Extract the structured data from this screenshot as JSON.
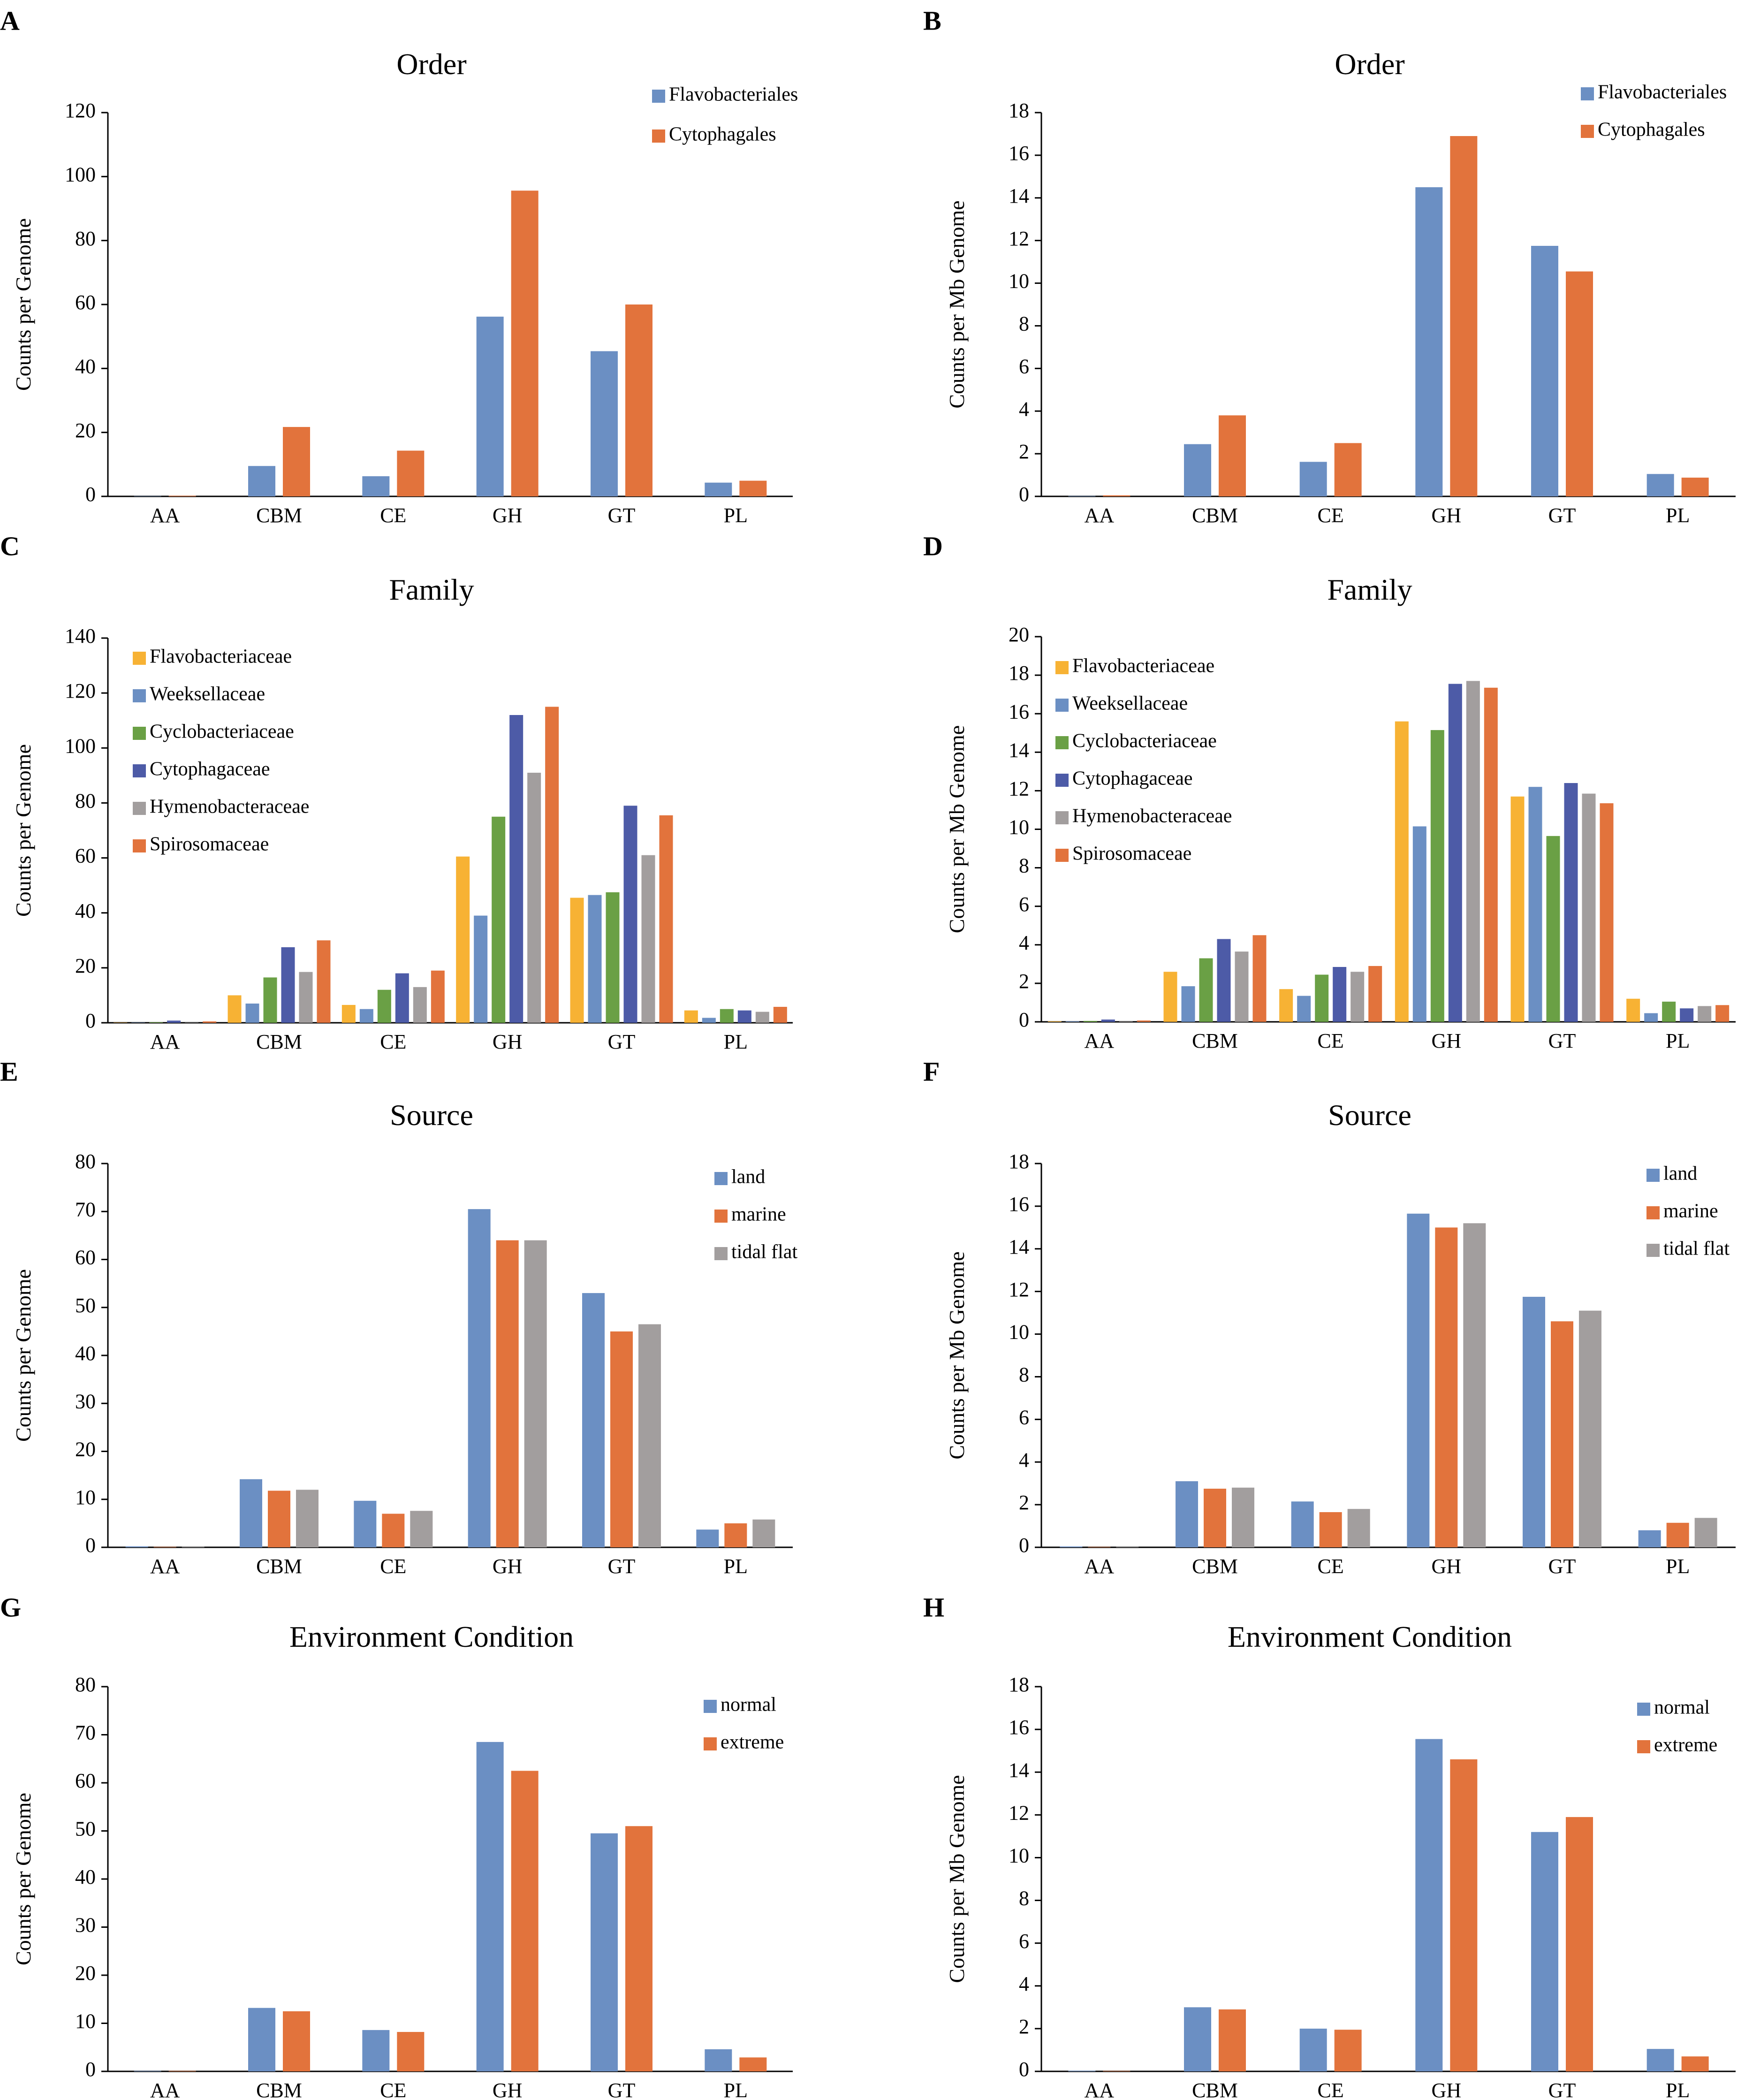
{
  "colors": {
    "blue": "#6b8fc3",
    "orange": "#e2733c",
    "yellow": "#f7b234",
    "green": "#6aa045",
    "darkblue": "#4d5ba7",
    "gray": "#a29e9e"
  },
  "chart_data": [
    {
      "panel": "A",
      "type": "bar",
      "title": "Order",
      "ylabel": "Counts per Genome",
      "categories": [
        "AA",
        "CBM",
        "CE",
        "GH",
        "GT",
        "PL"
      ],
      "ylim": [
        0,
        120
      ],
      "yticks": [
        "0",
        "20",
        "40",
        "60",
        "80",
        "100",
        "120"
      ],
      "ytick_values": [
        0,
        20,
        40,
        60,
        80,
        100,
        120
      ],
      "legend_position": "top-right",
      "series": [
        {
          "name": "Flavobacteriales",
          "color": "#6b8fc3",
          "values": [
            0.1,
            9.5,
            6.3,
            56.2,
            45.4,
            4.3
          ]
        },
        {
          "name": "Cytophagales",
          "color": "#e2733c",
          "values": [
            0.2,
            21.7,
            14.3,
            95.6,
            60.0,
            4.9
          ]
        }
      ]
    },
    {
      "panel": "B",
      "type": "bar",
      "title": "Order",
      "ylabel": "Counts per Mb Genome",
      "categories": [
        "AA",
        "CBM",
        "CE",
        "GH",
        "GT",
        "PL"
      ],
      "ylim": [
        0,
        18
      ],
      "yticks": [
        "0",
        "2",
        "4",
        "6",
        "8",
        "10",
        "12",
        "14",
        "16",
        "18"
      ],
      "ytick_values": [
        0,
        2,
        4,
        6,
        8,
        10,
        12,
        14,
        16,
        18
      ],
      "legend_position": "top-right",
      "series": [
        {
          "name": "Flavobacteriales",
          "color": "#6b8fc3",
          "values": [
            0.02,
            2.45,
            1.62,
            14.5,
            11.75,
            1.05
          ]
        },
        {
          "name": "Cytophagales",
          "color": "#e2733c",
          "values": [
            0.05,
            3.8,
            2.5,
            16.9,
            10.55,
            0.88
          ]
        }
      ]
    },
    {
      "panel": "C",
      "type": "bar",
      "title": "Family",
      "ylabel": "Counts per Genome",
      "categories": [
        "AA",
        "CBM",
        "CE",
        "GH",
        "GT",
        "PL"
      ],
      "ylim": [
        0,
        140
      ],
      "yticks": [
        "0",
        "20",
        "40",
        "60",
        "80",
        "100",
        "120",
        "140"
      ],
      "ytick_values": [
        0,
        20,
        40,
        60,
        80,
        100,
        120,
        140
      ],
      "legend_position": "top-left",
      "series": [
        {
          "name": "Flavobacteriaceae",
          "color": "#f7b234",
          "values": [
            0.1,
            10.0,
            6.5,
            60.5,
            45.5,
            4.5
          ]
        },
        {
          "name": "Weeksellaceae",
          "color": "#6b8fc3",
          "values": [
            0.1,
            7.0,
            5.0,
            39.0,
            46.5,
            1.8
          ]
        },
        {
          "name": "Cyclobacteriaceae",
          "color": "#6aa045",
          "values": [
            0.2,
            16.5,
            12.0,
            75.0,
            47.5,
            5.0
          ]
        },
        {
          "name": "Cytophagaceae",
          "color": "#4d5ba7",
          "values": [
            0.8,
            27.5,
            18.0,
            112.0,
            79.0,
            4.5
          ]
        },
        {
          "name": "Hymenobacteraceae",
          "color": "#a29e9e",
          "values": [
            0.1,
            18.5,
            13.0,
            91.0,
            61.0,
            4.0
          ]
        },
        {
          "name": "Spirosomaceae",
          "color": "#e2733c",
          "values": [
            0.5,
            30.0,
            19.0,
            115.0,
            75.5,
            5.8
          ]
        }
      ]
    },
    {
      "panel": "D",
      "type": "bar",
      "title": "Family",
      "ylabel": "Counts per Mb Genome",
      "categories": [
        "AA",
        "CBM",
        "CE",
        "GH",
        "GT",
        "PL"
      ],
      "ylim": [
        0,
        20
      ],
      "yticks": [
        "0",
        "2",
        "4",
        "6",
        "8",
        "10",
        "12",
        "14",
        "16",
        "18",
        "20"
      ],
      "ytick_values": [
        0,
        2,
        4,
        6,
        8,
        10,
        12,
        14,
        16,
        18,
        20
      ],
      "legend_position": "top-left",
      "series": [
        {
          "name": "Flavobacteriaceae",
          "color": "#f7b234",
          "values": [
            0.03,
            2.6,
            1.7,
            15.6,
            11.7,
            1.2
          ]
        },
        {
          "name": "Weeksellaceae",
          "color": "#6b8fc3",
          "values": [
            0.03,
            1.85,
            1.35,
            10.15,
            12.2,
            0.45
          ]
        },
        {
          "name": "Cyclobacteriaceae",
          "color": "#6aa045",
          "values": [
            0.05,
            3.3,
            2.45,
            15.15,
            9.65,
            1.05
          ]
        },
        {
          "name": "Cytophagaceae",
          "color": "#4d5ba7",
          "values": [
            0.12,
            4.3,
            2.85,
            17.55,
            12.4,
            0.7
          ]
        },
        {
          "name": "Hymenobacteraceae",
          "color": "#a29e9e",
          "values": [
            0.02,
            3.65,
            2.6,
            17.7,
            11.85,
            0.82
          ]
        },
        {
          "name": "Spirosomaceae",
          "color": "#e2733c",
          "values": [
            0.07,
            4.5,
            2.9,
            17.35,
            11.35,
            0.87
          ]
        }
      ]
    },
    {
      "panel": "E",
      "type": "bar",
      "title": "Source",
      "ylabel": "Counts per Genome",
      "categories": [
        "AA",
        "CBM",
        "CE",
        "GH",
        "GT",
        "PL"
      ],
      "ylim": [
        0,
        80
      ],
      "yticks": [
        "0",
        "10",
        "20",
        "30",
        "40",
        "50",
        "60",
        "70",
        "80"
      ],
      "ytick_values": [
        0,
        10,
        20,
        30,
        40,
        50,
        60,
        70,
        80
      ],
      "legend_position": "top-right",
      "series": [
        {
          "name": "land",
          "color": "#6b8fc3",
          "values": [
            0.2,
            14.2,
            9.7,
            70.5,
            53.0,
            3.7
          ]
        },
        {
          "name": "marine",
          "color": "#e2733c",
          "values": [
            0.1,
            11.8,
            7.0,
            64.0,
            45.0,
            5.0
          ]
        },
        {
          "name": "tidal flat",
          "color": "#a29e9e",
          "values": [
            0.1,
            12.0,
            7.6,
            64.0,
            46.5,
            5.8
          ]
        }
      ]
    },
    {
      "panel": "F",
      "type": "bar",
      "title": "Source",
      "ylabel": "Counts per Mb Genome",
      "categories": [
        "AA",
        "CBM",
        "CE",
        "GH",
        "GT",
        "PL"
      ],
      "ylim": [
        0,
        18
      ],
      "yticks": [
        "0",
        "2",
        "4",
        "6",
        "8",
        "10",
        "12",
        "14",
        "16",
        "18"
      ],
      "ytick_values": [
        0,
        2,
        4,
        6,
        8,
        10,
        12,
        14,
        16,
        18
      ],
      "legend_position": "top-right",
      "series": [
        {
          "name": "land",
          "color": "#6b8fc3",
          "values": [
            0.04,
            3.1,
            2.15,
            15.65,
            11.75,
            0.8
          ]
        },
        {
          "name": "marine",
          "color": "#e2733c",
          "values": [
            0.02,
            2.75,
            1.65,
            15.0,
            10.6,
            1.15
          ]
        },
        {
          "name": "tidal flat",
          "color": "#a29e9e",
          "values": [
            0.02,
            2.8,
            1.8,
            15.2,
            11.1,
            1.38
          ]
        }
      ]
    },
    {
      "panel": "G",
      "type": "bar",
      "title": "Environment Condition",
      "ylabel": "Counts per Genome",
      "categories": [
        "AA",
        "CBM",
        "CE",
        "GH",
        "GT",
        "PL"
      ],
      "ylim": [
        0,
        80
      ],
      "yticks": [
        "0",
        "10",
        "20",
        "30",
        "40",
        "50",
        "60",
        "70",
        "80"
      ],
      "ytick_values": [
        0,
        10,
        20,
        30,
        40,
        50,
        60,
        70,
        80
      ],
      "legend_position": "top-right",
      "series": [
        {
          "name": "normal",
          "color": "#6b8fc3",
          "values": [
            0.1,
            13.2,
            8.6,
            68.5,
            49.5,
            4.6
          ]
        },
        {
          "name": "extreme",
          "color": "#e2733c",
          "values": [
            0.1,
            12.5,
            8.2,
            62.5,
            51.0,
            2.9
          ]
        }
      ]
    },
    {
      "panel": "H",
      "type": "bar",
      "title": "Environment Condition",
      "ylabel": "Counts per Mb Genome",
      "categories": [
        "AA",
        "CBM",
        "CE",
        "GH",
        "GT",
        "PL"
      ],
      "ylim": [
        0,
        18
      ],
      "yticks": [
        "0",
        "2",
        "4",
        "6",
        "8",
        "10",
        "12",
        "14",
        "16",
        "18"
      ],
      "ytick_values": [
        0,
        2,
        4,
        6,
        8,
        10,
        12,
        14,
        16,
        18
      ],
      "legend_position": "top-right",
      "series": [
        {
          "name": "normal",
          "color": "#6b8fc3",
          "values": [
            0.03,
            3.0,
            2.0,
            15.55,
            11.2,
            1.05
          ]
        },
        {
          "name": "extreme",
          "color": "#e2733c",
          "values": [
            0.02,
            2.9,
            1.95,
            14.6,
            11.9,
            0.7
          ]
        }
      ]
    }
  ]
}
